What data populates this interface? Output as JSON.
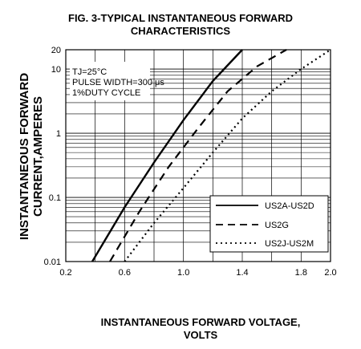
{
  "chart_data": {
    "type": "line",
    "title_line1": "FIG. 3-TYPICAL INSTANTANEOUS FORWARD",
    "title_line2": "CHARACTERISTICS",
    "ylabel_line1": "INSTANTANEOUS FORWARD",
    "ylabel_line2": "CURRENT,AMPERES",
    "xlabel_line1": "INSTANTANEOUS FORWARD VOLTAGE,",
    "xlabel_line2": "VOLTS",
    "xlim": [
      0.2,
      2.0
    ],
    "ylim": [
      0.01,
      20
    ],
    "yscale": "log",
    "xticks": [
      0.2,
      0.4,
      0.6,
      0.8,
      1.0,
      1.2,
      1.4,
      1.6,
      1.8,
      2.0
    ],
    "xtick_labels": [
      "0.2",
      "0.6",
      "1.0",
      "1.4",
      "1.8",
      "2.0"
    ],
    "ytick_labels": [
      "20",
      "10",
      "1",
      "0.1",
      "0.01"
    ],
    "annotations": [
      "TJ=25°C",
      "PULSE WIDTH=300 μs",
      "1%DUTY CYCLE"
    ],
    "grid": true,
    "legend_position": "bottom-right",
    "series": [
      {
        "name": "US2A-US2D",
        "style": "solid",
        "x": [
          0.38,
          0.6,
          0.8,
          1.0,
          1.2,
          1.4
        ],
        "y": [
          0.01,
          0.07,
          0.35,
          1.6,
          6.5,
          20
        ]
      },
      {
        "name": "US2G",
        "style": "dashed",
        "x": [
          0.5,
          0.7,
          0.9,
          1.1,
          1.3,
          1.5,
          1.7
        ],
        "y": [
          0.01,
          0.06,
          0.3,
          1.2,
          4.5,
          11,
          20
        ]
      },
      {
        "name": "US2J-US2M",
        "style": "dotted",
        "x": [
          0.6,
          0.8,
          1.0,
          1.2,
          1.4,
          1.6,
          1.8,
          2.0
        ],
        "y": [
          0.01,
          0.04,
          0.14,
          0.5,
          1.7,
          4.5,
          10,
          20
        ]
      }
    ]
  }
}
